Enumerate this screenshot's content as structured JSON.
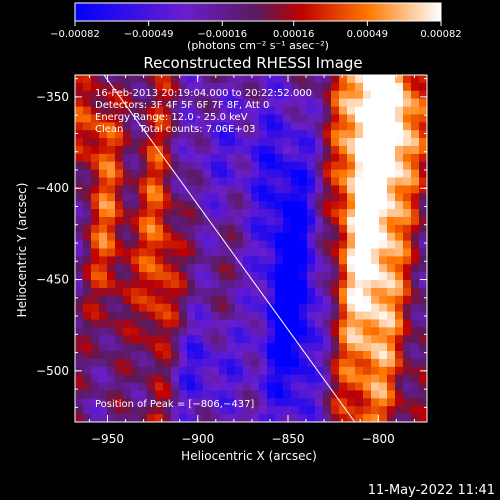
{
  "chart_data": {
    "type": "heatmap",
    "title": "Reconstructed RHESSI Image",
    "xlabel": "Heliocentric X (arcsec)",
    "ylabel": "Heliocentric Y (arcsec)",
    "xlim": [
      -968,
      -773
    ],
    "ylim": [
      -528,
      -338
    ],
    "x_ticks": [
      -950,
      -900,
      -850,
      -800
    ],
    "x_tick_labels": [
      "−950",
      "−900",
      "−850",
      "−800"
    ],
    "y_ticks": [
      -350,
      -400,
      -450,
      -500
    ],
    "y_tick_labels": [
      "−350",
      "−400",
      "−450",
      "−500"
    ],
    "colorbar": {
      "min": -0.00082,
      "max": 0.00082,
      "ticks": [
        -0.00082,
        -0.00049,
        -0.00016,
        0.00016,
        0.00049,
        0.00082
      ],
      "tick_labels": [
        "−0.00082",
        "−0.00049",
        "−0.00016",
        "0.00016",
        "0.00049",
        "0.00082"
      ],
      "unit_label": "(photons cm⁻² s⁻¹ asec⁻²)"
    },
    "annotations": [
      "16-Feb-2013 20:19:04.000 to 20:22:52.000",
      "Detectors: 3F 4F 5F 6F 7F 8F, Att 0",
      "Energy Range: 12.0 - 25.0 keV",
      "Clean     Total counts: 7.06E+03"
    ],
    "peak_label": "Position of Peak = [−806,−437]",
    "peak": [
      -806,
      -437
    ],
    "limb_line": [
      [
        -968,
        -316
      ],
      [
        -813,
        -528
      ]
    ],
    "structures": [
      {
        "x": -805,
        "y": -410,
        "sx": 14,
        "sy": 95,
        "amp": 0.0011
      },
      {
        "x": -790,
        "y": -360,
        "sx": 12,
        "sy": 30,
        "amp": 0.0006
      },
      {
        "x": -922,
        "y": -440,
        "sx": 8,
        "sy": 80,
        "amp": 0.00055
      },
      {
        "x": -950,
        "y": -420,
        "sx": 8,
        "sy": 40,
        "amp": 0.0005
      },
      {
        "x": -960,
        "y": -365,
        "sx": 9,
        "sy": 18,
        "amp": 0.0004
      },
      {
        "x": -848,
        "y": -455,
        "sx": 12,
        "sy": 55,
        "amp": -0.0009
      },
      {
        "x": -900,
        "y": -500,
        "sx": 20,
        "sy": 20,
        "amp": -0.0004
      },
      {
        "x": -880,
        "y": -380,
        "sx": 25,
        "sy": 25,
        "amp": -0.0003
      }
    ]
  },
  "timestamp": "11-May-2022 11:41"
}
